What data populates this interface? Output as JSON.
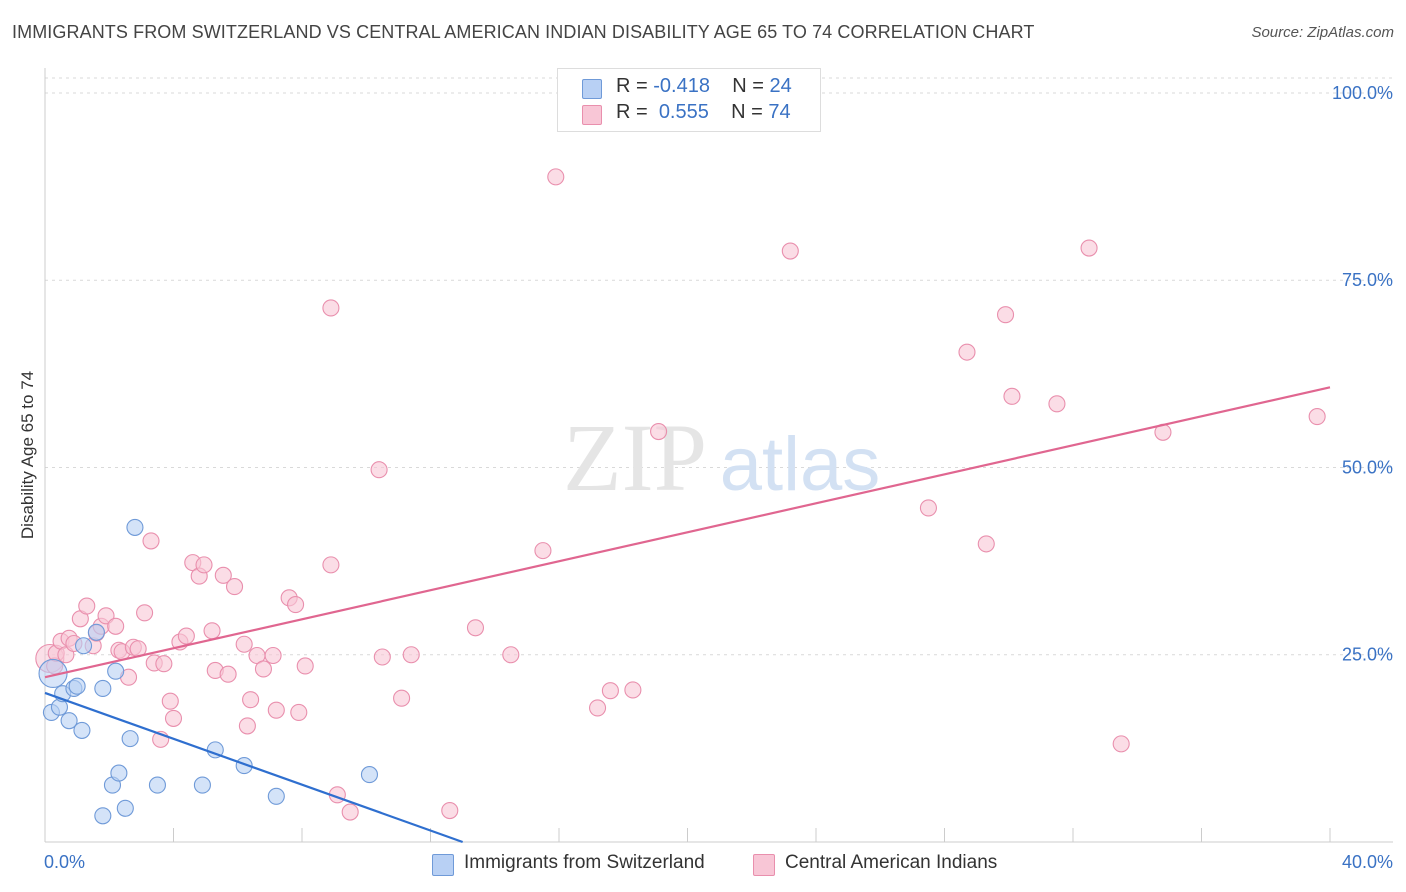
{
  "title": "IMMIGRANTS FROM SWITZERLAND VS CENTRAL AMERICAN INDIAN DISABILITY AGE 65 TO 74 CORRELATION CHART",
  "source": "Source: ZipAtlas.com",
  "watermark": {
    "zip": "ZIP",
    "atlas": "atlas"
  },
  "legend": {
    "rows": [
      {
        "r_label": "R =",
        "r_value": "-0.418",
        "n_label": "N =",
        "n_value": "24"
      },
      {
        "r_label": "R =",
        "r_value": "0.555",
        "n_label": "N =",
        "n_value": "74"
      }
    ]
  },
  "colors": {
    "blue_fill": "#b8d0f4",
    "blue_stroke": "#6f9ad8",
    "blue_line": "#2f6fcf",
    "pink_fill": "#f8c6d6",
    "pink_stroke": "#e98fad",
    "pink_line": "#e06690",
    "grid": "#d9d9d9",
    "axis_text": "#3a72c4"
  },
  "chart_data": {
    "type": "scatter",
    "title": "IMMIGRANTS FROM SWITZERLAND VS CENTRAL AMERICAN INDIAN DISABILITY AGE 65 TO 74 CORRELATION CHART",
    "xlabel": "",
    "ylabel": "Disability Age 65 to 74",
    "xlim": [
      0,
      40
    ],
    "ylim": [
      0,
      102
    ],
    "x_tick_labels": [
      "0.0%",
      "40.0%"
    ],
    "y_ticks": [
      25,
      50,
      75,
      100
    ],
    "y_tick_labels": [
      "25.0%",
      "50.0%",
      "75.0%",
      "100.0%"
    ],
    "grid": true,
    "series": [
      {
        "name": "Immigrants from Switzerland",
        "color": "blue",
        "r": -0.418,
        "n": 24,
        "trend": {
          "x": [
            0,
            13.0
          ],
          "y": [
            19.9,
            0
          ]
        },
        "points": [
          {
            "x": 0.25,
            "y": 22.5,
            "big": true
          },
          {
            "x": 0.2,
            "y": 17.3
          },
          {
            "x": 0.45,
            "y": 18.0
          },
          {
            "x": 0.55,
            "y": 19.8
          },
          {
            "x": 0.75,
            "y": 16.2
          },
          {
            "x": 0.9,
            "y": 20.5
          },
          {
            "x": 1.0,
            "y": 20.8
          },
          {
            "x": 1.15,
            "y": 14.9
          },
          {
            "x": 1.2,
            "y": 26.2
          },
          {
            "x": 1.6,
            "y": 28.0
          },
          {
            "x": 1.8,
            "y": 20.5
          },
          {
            "x": 1.8,
            "y": 3.5
          },
          {
            "x": 2.1,
            "y": 7.6
          },
          {
            "x": 2.2,
            "y": 22.8
          },
          {
            "x": 2.3,
            "y": 9.2
          },
          {
            "x": 2.5,
            "y": 4.5
          },
          {
            "x": 2.65,
            "y": 13.8
          },
          {
            "x": 2.8,
            "y": 42.0
          },
          {
            "x": 3.5,
            "y": 7.6
          },
          {
            "x": 4.9,
            "y": 7.6
          },
          {
            "x": 5.3,
            "y": 12.3
          },
          {
            "x": 6.2,
            "y": 10.2
          },
          {
            "x": 7.2,
            "y": 6.1
          },
          {
            "x": 10.1,
            "y": 9.0
          }
        ]
      },
      {
        "name": "Central American Indians",
        "color": "pink",
        "r": 0.555,
        "n": 74,
        "trend": {
          "x": [
            0,
            40
          ],
          "y": [
            22.0,
            60.7
          ]
        },
        "points": [
          {
            "x": 0.15,
            "y": 24.5,
            "big": true
          },
          {
            "x": 0.3,
            "y": 23.5
          },
          {
            "x": 0.35,
            "y": 25.2
          },
          {
            "x": 0.5,
            "y": 26.8
          },
          {
            "x": 0.65,
            "y": 25.0
          },
          {
            "x": 0.75,
            "y": 27.2
          },
          {
            "x": 0.9,
            "y": 26.5
          },
          {
            "x": 1.1,
            "y": 29.8
          },
          {
            "x": 1.3,
            "y": 31.5
          },
          {
            "x": 1.5,
            "y": 26.2
          },
          {
            "x": 1.6,
            "y": 27.9
          },
          {
            "x": 1.75,
            "y": 28.8
          },
          {
            "x": 1.9,
            "y": 30.2
          },
          {
            "x": 2.2,
            "y": 28.8
          },
          {
            "x": 2.3,
            "y": 25.6
          },
          {
            "x": 2.4,
            "y": 25.4
          },
          {
            "x": 2.6,
            "y": 22.0
          },
          {
            "x": 2.75,
            "y": 26.0
          },
          {
            "x": 2.9,
            "y": 25.8
          },
          {
            "x": 3.1,
            "y": 30.6
          },
          {
            "x": 3.3,
            "y": 40.2
          },
          {
            "x": 3.4,
            "y": 23.9
          },
          {
            "x": 3.6,
            "y": 13.7
          },
          {
            "x": 3.7,
            "y": 23.8
          },
          {
            "x": 3.9,
            "y": 18.8
          },
          {
            "x": 4.0,
            "y": 16.5
          },
          {
            "x": 4.2,
            "y": 26.7
          },
          {
            "x": 4.4,
            "y": 27.5
          },
          {
            "x": 4.6,
            "y": 37.3
          },
          {
            "x": 4.8,
            "y": 35.5
          },
          {
            "x": 4.95,
            "y": 37.0
          },
          {
            "x": 5.2,
            "y": 28.2
          },
          {
            "x": 5.3,
            "y": 22.9
          },
          {
            "x": 5.55,
            "y": 35.6
          },
          {
            "x": 5.7,
            "y": 22.4
          },
          {
            "x": 5.9,
            "y": 34.1
          },
          {
            "x": 6.2,
            "y": 26.4
          },
          {
            "x": 6.3,
            "y": 15.5
          },
          {
            "x": 6.4,
            "y": 19.0
          },
          {
            "x": 6.6,
            "y": 24.9
          },
          {
            "x": 6.8,
            "y": 23.1
          },
          {
            "x": 7.1,
            "y": 24.9
          },
          {
            "x": 7.2,
            "y": 17.6
          },
          {
            "x": 7.6,
            "y": 32.6
          },
          {
            "x": 7.8,
            "y": 31.7
          },
          {
            "x": 7.9,
            "y": 17.3
          },
          {
            "x": 8.1,
            "y": 23.5
          },
          {
            "x": 8.9,
            "y": 37.0
          },
          {
            "x": 9.1,
            "y": 6.3
          },
          {
            "x": 8.9,
            "y": 71.3
          },
          {
            "x": 9.5,
            "y": 4.0
          },
          {
            "x": 10.4,
            "y": 49.7
          },
          {
            "x": 10.5,
            "y": 24.7
          },
          {
            "x": 11.1,
            "y": 19.2
          },
          {
            "x": 11.4,
            "y": 25.0
          },
          {
            "x": 12.6,
            "y": 4.2
          },
          {
            "x": 13.4,
            "y": 28.6
          },
          {
            "x": 14.5,
            "y": 25.0
          },
          {
            "x": 15.5,
            "y": 38.9
          },
          {
            "x": 15.9,
            "y": 88.8
          },
          {
            "x": 17.2,
            "y": 17.9
          },
          {
            "x": 17.6,
            "y": 20.2
          },
          {
            "x": 18.3,
            "y": 20.3
          },
          {
            "x": 19.1,
            "y": 54.8
          },
          {
            "x": 23.2,
            "y": 78.9
          },
          {
            "x": 27.5,
            "y": 44.6
          },
          {
            "x": 28.7,
            "y": 65.4
          },
          {
            "x": 29.3,
            "y": 39.8
          },
          {
            "x": 29.9,
            "y": 70.4
          },
          {
            "x": 30.1,
            "y": 59.5
          },
          {
            "x": 31.5,
            "y": 58.5
          },
          {
            "x": 32.5,
            "y": 79.3
          },
          {
            "x": 33.5,
            "y": 13.1
          },
          {
            "x": 34.8,
            "y": 54.7
          },
          {
            "x": 39.6,
            "y": 56.8
          }
        ]
      }
    ]
  }
}
